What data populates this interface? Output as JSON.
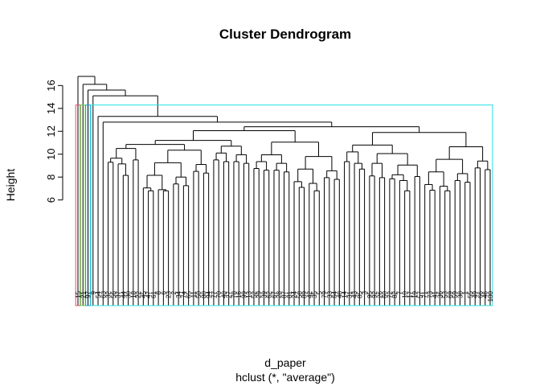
{
  "chart_data": {
    "type": "dendrogram",
    "title": "Cluster Dendrogram",
    "ylabel": "Height",
    "xlabel": "d_paper",
    "sub": "hclust (*, \"average\")",
    "ylim": [
      4.5,
      17.5
    ],
    "yticks": [
      6,
      8,
      10,
      12,
      14,
      16
    ],
    "leaves": [
      "15",
      "21",
      "97",
      "9",
      "54",
      "63",
      "32",
      "56",
      "37",
      "44",
      "30",
      "18",
      "22",
      "45",
      "47",
      "61",
      "8",
      "6",
      "23",
      "2",
      "34",
      "74",
      "65",
      "11",
      "50",
      "80",
      "94",
      "77",
      "70",
      "40",
      "27",
      "78",
      "16",
      "99",
      "13",
      "52",
      "29",
      "39",
      "62",
      "67",
      "28",
      "87",
      "81",
      "24",
      "58",
      "89",
      "42",
      "35",
      "5",
      "79",
      "33",
      "64",
      "48",
      "14",
      "31",
      "43",
      "85",
      "3",
      "95",
      "92",
      "26",
      "60",
      "72",
      "82",
      "7",
      "10",
      "17",
      "19",
      "57",
      "71",
      "73",
      "41",
      "36",
      "53",
      "69",
      "59",
      "38",
      "1",
      "55",
      "49",
      "66",
      "46",
      "100"
    ],
    "merges": [
      {
        "node": [
          57,
          59
        ],
        "h": 6.9
      },
      {
        "node": [
          56,
          -1
        ],
        "h": 7.4
      },
      {
        "node": [
          69,
          70
        ],
        "h": 7.6
      },
      {
        "node": [
          10,
          12
        ],
        "h": 7.8
      },
      {
        "node": [
          71,
          73
        ],
        "h": 8.1
      },
      {
        "node": [
          64,
          66
        ],
        "h": 8.4
      },
      {
        "node": [
          28,
          30
        ],
        "h": 8.5
      },
      {
        "node": [
          17,
          19
        ],
        "h": 9.0
      },
      {
        "node": [
          76,
          78
        ],
        "h": 9.2
      },
      {
        "node": [
          22,
          24
        ],
        "h": 9.5
      },
      {
        "node": [
          35,
          37
        ],
        "h": 9.7
      },
      {
        "node": [
          45,
          47
        ],
        "h": 10.1
      },
      {
        "node": [
          8,
          10
        ],
        "h": 10.5
      },
      {
        "node": [
          4,
          6
        ],
        "h": 11.8
      }
    ],
    "cluster_boxes": [
      {
        "leaves": [
          0,
          0
        ],
        "color": "#df536b",
        "top": 14.3
      },
      {
        "leaves": [
          1,
          1
        ],
        "color": "#61d04f",
        "top": 14.3
      },
      {
        "leaves": [
          2,
          2
        ],
        "color": "#2297e6",
        "top": 14.3
      },
      {
        "leaves": [
          3,
          82
        ],
        "color": "#28e2e5",
        "top": 14.3
      }
    ]
  }
}
